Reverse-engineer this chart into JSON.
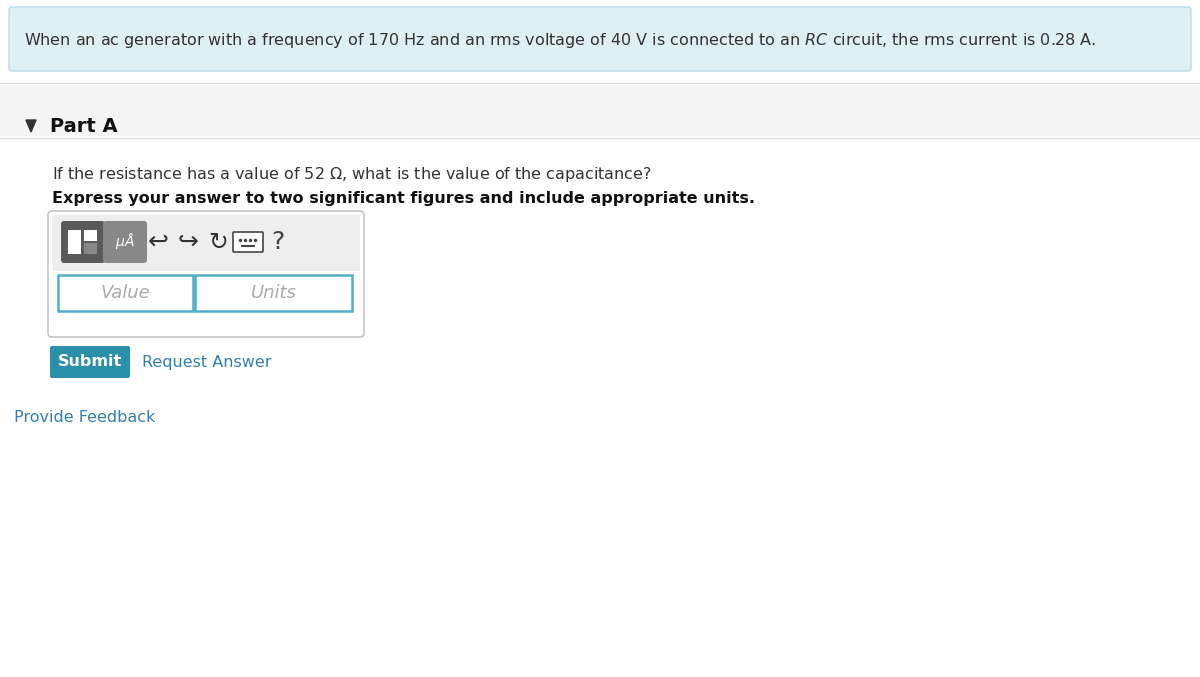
{
  "bg_color": "#ffffff",
  "header_bg": "#dff0f5",
  "header_border": "#b8d8e8",
  "part_label": "Part A",
  "question_text": "If the resistance has a value of 52 Ω, what is the value of the capacitance?",
  "bold_text": "Express your answer to two significant figures and include appropriate units.",
  "submit_bg": "#2a8fa8",
  "submit_text": "Submit",
  "request_text": "Request Answer",
  "link_color": "#3380b0",
  "provide_feedback": "Provide Feedback",
  "value_placeholder": "Value",
  "units_placeholder": "Units",
  "divider_color": "#cccccc",
  "input_border": "#4db0c8",
  "input_text_color": "#aaaaaa",
  "part_section_bg": "#f5f5f5",
  "toolbar_light_bg": "#e8e8e8",
  "icon1_bg": "#666666",
  "icon2_bg": "#888888",
  "container_border": "#bbbbbb",
  "container_bg": "#f9f9f9"
}
